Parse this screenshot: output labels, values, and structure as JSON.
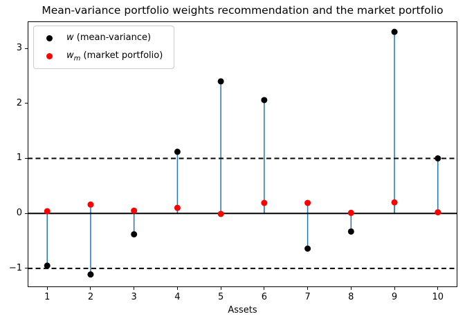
{
  "chart_data": {
    "type": "scatter",
    "title": "Mean-variance portfolio weights recommendation and the market portfolio",
    "xlabel": "Assets",
    "categories": [
      1,
      2,
      3,
      4,
      5,
      6,
      7,
      8,
      9,
      10
    ],
    "series": [
      {
        "name": "w (mean-variance)",
        "marker_color": "#000000",
        "values": [
          -0.95,
          -1.11,
          -0.38,
          1.12,
          2.4,
          2.06,
          -0.64,
          -0.33,
          3.3,
          1.0
        ]
      },
      {
        "name": "wm (market portfolio)",
        "marker_color": "#ff0000",
        "values": [
          0.04,
          0.16,
          0.05,
          0.1,
          -0.01,
          0.19,
          0.19,
          0.01,
          0.2,
          0.02
        ]
      }
    ],
    "stem_color": "#1f77b4",
    "ref_lines": [
      {
        "y": 0,
        "style": "solid"
      },
      {
        "y": 1,
        "style": "dashed"
      },
      {
        "y": -1,
        "style": "dashed"
      }
    ],
    "yticks": [
      -1,
      0,
      1,
      2,
      3
    ],
    "xlim": [
      0.55,
      10.45
    ],
    "ylim": [
      -1.34,
      3.49
    ],
    "grid": false,
    "legend_position": "upper-left"
  },
  "legend": {
    "items": [
      {
        "symbol": "w",
        "subscript": "",
        "rest": " (mean-variance)",
        "marker_color": "#000000"
      },
      {
        "symbol": "w",
        "subscript": "m",
        "rest": " (market portfolio)",
        "marker_color": "#ff0000"
      }
    ]
  }
}
